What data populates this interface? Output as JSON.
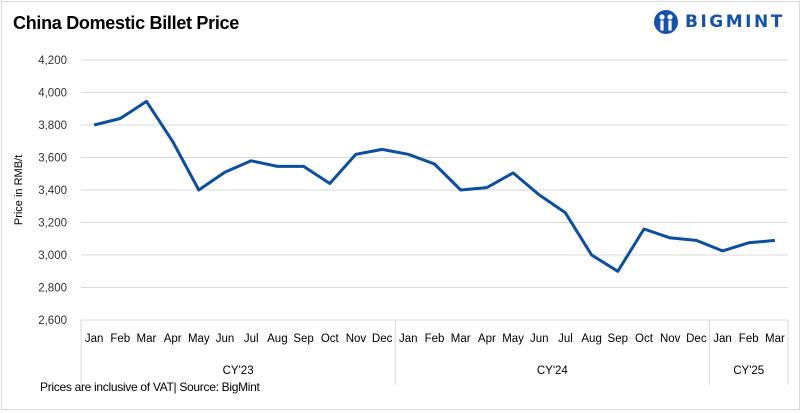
{
  "title": "China Domestic Billet Price",
  "logo": {
    "text": "BIGMINT",
    "color": "#1552b0"
  },
  "footnote": "Prices are inclusive of VAT| Source: BigMint",
  "chart_data": {
    "type": "line",
    "title": "China Domestic Billet Price",
    "ylabel": "Price in RMB/t",
    "xlabel": "",
    "ylim": [
      2600,
      4200
    ],
    "yticks": [
      "2,600",
      "2,800",
      "3,000",
      "3,200",
      "3,400",
      "3,600",
      "3,800",
      "4,000",
      "4,200"
    ],
    "ytick_values": [
      2600,
      2800,
      3000,
      3200,
      3400,
      3600,
      3800,
      4000,
      4200
    ],
    "grid": "horizontal",
    "line_color": "#0b4ea2",
    "groups": [
      {
        "label": "CY'23",
        "months": [
          "Jan",
          "Feb",
          "Mar",
          "Apr",
          "May",
          "Jun",
          "Jul",
          "Aug",
          "Sep",
          "Oct",
          "Nov",
          "Dec"
        ]
      },
      {
        "label": "CY'24",
        "months": [
          "Jan",
          "Feb",
          "Mar",
          "Apr",
          "May",
          "Jun",
          "Jul",
          "Aug",
          "Sep",
          "Oct",
          "Nov",
          "Dec"
        ]
      },
      {
        "label": "CY'25",
        "months": [
          "Jan",
          "Feb",
          "Mar"
        ]
      }
    ],
    "values": [
      3800,
      3840,
      3945,
      3700,
      3400,
      3510,
      3580,
      3545,
      3545,
      3440,
      3620,
      3650,
      3620,
      3560,
      3400,
      3415,
      3505,
      3370,
      3260,
      3000,
      2900,
      3160,
      3105,
      3090,
      3025,
      3075,
      3090
    ]
  }
}
